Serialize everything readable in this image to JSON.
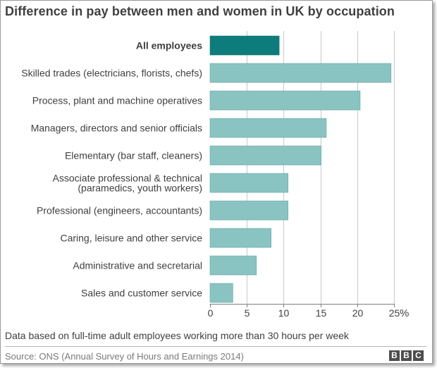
{
  "title": "Difference in pay between men and women in UK by occupation",
  "footnote": "Data based on full-time adult employees working more than 30 hours per week",
  "source": "Source: ONS (Annual Survey of Hours and Earnings 2014)",
  "logo_letters": [
    "B",
    "B",
    "C"
  ],
  "chart_data": {
    "type": "bar",
    "orientation": "horizontal",
    "categories": [
      [
        "All employees"
      ],
      [
        "Skilled trades (electricians, florists, chefs)"
      ],
      [
        "Process, plant and machine operatives"
      ],
      [
        "Managers, directors and senior officials"
      ],
      [
        "Elementary (bar staff, cleaners)"
      ],
      [
        "Associate professional & technical",
        "(paramedics, youth workers)"
      ],
      [
        "Professional (engineers, accountants)"
      ],
      [
        "Caring, leisure and other service"
      ],
      [
        "Administrative and secretarial"
      ],
      [
        "Sales and customer service"
      ]
    ],
    "values": [
      9.4,
      24.6,
      20.4,
      15.8,
      15.1,
      10.6,
      10.6,
      8.3,
      6.3,
      3.1
    ],
    "highlight_index": 0,
    "xlim": [
      0,
      25
    ],
    "xticks": [
      0,
      5,
      10,
      15,
      20,
      25
    ],
    "xunit": "%",
    "grid": true,
    "colors": {
      "highlight": "#0e7c7b",
      "bar": "#8ac4c2",
      "bar_outline": "#5fa5a3",
      "grid": "#c8c8c8",
      "axis": "#808080",
      "text": "#404040"
    }
  }
}
